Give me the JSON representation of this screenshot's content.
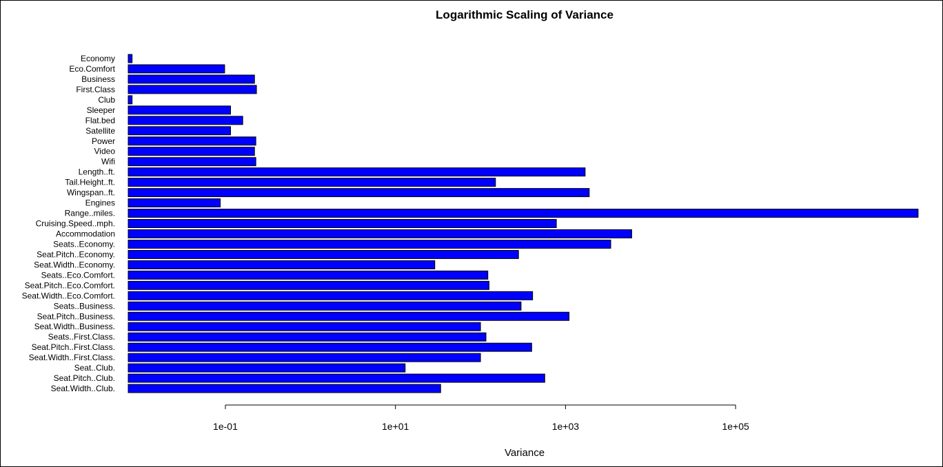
{
  "chart_data": {
    "type": "bar",
    "orientation": "horizontal",
    "title": "Logarithmic  Scaling of Variance",
    "xlabel": "Variance",
    "ylabel": "",
    "x_scale": "log",
    "xlim": [
      0.0072,
      15400000
    ],
    "x_ticks": [
      0.1,
      10,
      1000,
      100000
    ],
    "x_tick_labels": [
      "1e-01",
      "1e+01",
      "1e+03",
      "1e+05"
    ],
    "bar_color": "#0000ff",
    "bar_edge_color": "#000000",
    "grid": false,
    "legend": "none",
    "categories": [
      "Economy",
      "Eco.Comfort",
      "Business",
      "First.Class",
      "Club",
      "Sleeper",
      "Flat.bed",
      "Satellite",
      "Power",
      "Video",
      "Wifi",
      "Length..ft.",
      "Tail.Height..ft.",
      "Wingspan..ft.",
      "Engines",
      "Range..miles.",
      "Cruising.Speed..mph.",
      "Accommodation",
      "Seats..Economy.",
      "Seat.Pitch..Economy.",
      "Seat.Width..Economy.",
      "Seats..Eco.Comfort.",
      "Seat.Pitch..Eco.Comfort.",
      "Seat.Width..Eco.Comfort.",
      "Seats..Business.",
      "Seat.Pitch..Business.",
      "Seat.Width..Business.",
      "Seats..First.Class.",
      "Seat.Pitch..First.Class.",
      "Seat.Width..First.Class.",
      "Seat..Club.",
      "Seat.Pitch..Club.",
      "Seat.Width..Club."
    ],
    "values": [
      0.008,
      0.098,
      0.22,
      0.232,
      0.008,
      0.115,
      0.16,
      0.115,
      0.228,
      0.22,
      0.228,
      1700,
      150,
      1900,
      0.087,
      14000000,
      780,
      6000,
      3400,
      280,
      29,
      122,
      126,
      410,
      300,
      1100,
      100,
      116,
      400,
      100,
      13,
      570,
      34
    ]
  }
}
